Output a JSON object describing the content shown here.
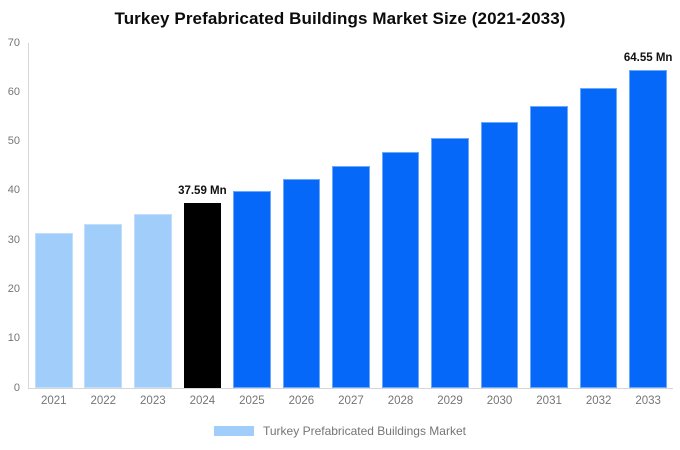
{
  "title": "Turkey Prefabricated Buildings Market Size (2021-2033)",
  "legend": {
    "label": "Turkey Prefabricated Buildings Market",
    "swatch_color": "#A0CDF9"
  },
  "colors": {
    "historical": "#A0CDF9",
    "current": "#000000",
    "forecast": "#0568F9",
    "axis_line": "#D6D6D6",
    "tick_text": "#757575",
    "title_text": "#0B0B0B"
  },
  "chart_data": {
    "type": "bar",
    "title": "Turkey Prefabricated Buildings Market Size (2021-2033)",
    "categories": [
      "2021",
      "2022",
      "2023",
      "2024",
      "2025",
      "2026",
      "2027",
      "2028",
      "2029",
      "2030",
      "2031",
      "2032",
      "2033"
    ],
    "values": [
      31.38,
      33.33,
      35.4,
      37.59,
      39.92,
      42.4,
      45.03,
      47.82,
      50.79,
      53.94,
      57.29,
      60.84,
      64.55
    ],
    "unit": "Mn",
    "bar_roles": [
      "historical",
      "historical",
      "historical",
      "current",
      "forecast",
      "forecast",
      "forecast",
      "forecast",
      "forecast",
      "forecast",
      "forecast",
      "forecast",
      "forecast"
    ],
    "annotations": [
      {
        "index": 3,
        "text": "37.59 Mn"
      },
      {
        "index": 12,
        "text": "64.55 Mn"
      }
    ],
    "xlabel": "",
    "ylabel": "",
    "ylim": [
      0,
      70
    ],
    "yticks": [
      0,
      10,
      20,
      30,
      40,
      50,
      60,
      70
    ],
    "grid": false,
    "legend_position": "bottom",
    "legend_entries": [
      "Turkey Prefabricated Buildings Market"
    ]
  }
}
